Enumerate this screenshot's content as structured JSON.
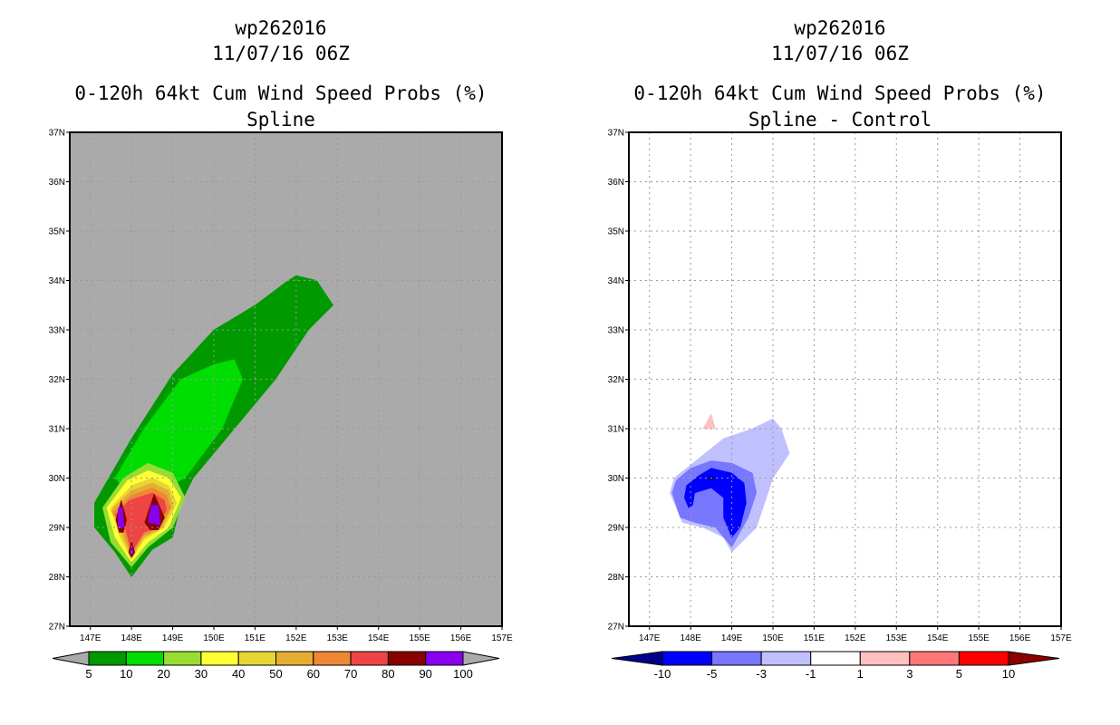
{
  "chart_data": [
    {
      "type": "heatmap",
      "storm": "wp262016",
      "datetime": "11/07/16 06Z",
      "title": "0-120h 64kt Cum Wind Speed Probs (%)",
      "subtitle": "Spline",
      "x_ticks": [
        "147E",
        "148E",
        "149E",
        "150E",
        "151E",
        "152E",
        "153E",
        "154E",
        "155E",
        "156E",
        "157E"
      ],
      "y_ticks": [
        "27N",
        "28N",
        "29N",
        "30N",
        "31N",
        "32N",
        "33N",
        "34N",
        "35N",
        "36N",
        "37N"
      ],
      "xlim": [
        146.5,
        157
      ],
      "ylim": [
        27,
        37
      ],
      "background": "#aaaaaa",
      "grid": true,
      "colorbar": {
        "labels": [
          "5",
          "10",
          "20",
          "30",
          "40",
          "50",
          "60",
          "70",
          "80",
          "90",
          "100"
        ],
        "colors": [
          "#009900",
          "#00dd00",
          "#99dd33",
          "#ffff33",
          "#e6d633",
          "#e6ad33",
          "#ee8833",
          "#ee4444",
          "#880000",
          "#8800ee"
        ],
        "under": "#aaaaaa",
        "over": "#aaaaaa"
      },
      "contours": [
        {
          "level": 5,
          "color": "#009900",
          "points": [
            [
              147.1,
              29.0
            ],
            [
              147.1,
              29.5
            ],
            [
              148.0,
              30.8
            ],
            [
              149.0,
              32.1
            ],
            [
              150.0,
              33.0
            ],
            [
              151.0,
              33.5
            ],
            [
              151.8,
              34.0
            ],
            [
              152.0,
              34.1
            ],
            [
              152.5,
              34.0
            ],
            [
              152.9,
              33.5
            ],
            [
              152.3,
              33.0
            ],
            [
              151.5,
              32.0
            ],
            [
              150.5,
              31.0
            ],
            [
              149.5,
              30.0
            ],
            [
              149.2,
              29.5
            ],
            [
              149.0,
              28.8
            ],
            [
              148.5,
              28.55
            ],
            [
              148.0,
              28.0
            ],
            [
              147.6,
              28.5
            ]
          ]
        },
        {
          "level": 10,
          "color": "#00dd00",
          "points": [
            [
              147.6,
              30.0
            ],
            [
              148.3,
              31.0
            ],
            [
              149.2,
              32.0
            ],
            [
              150.0,
              32.3
            ],
            [
              150.5,
              32.4
            ],
            [
              150.7,
              32.0
            ],
            [
              150.2,
              31.0
            ],
            [
              149.3,
              30.0
            ],
            [
              148.4,
              29.6
            ],
            [
              147.8,
              29.8
            ]
          ]
        },
        {
          "level": 20,
          "color": "#99dd33",
          "points": [
            [
              147.3,
              29.4
            ],
            [
              147.8,
              30.0
            ],
            [
              148.4,
              30.3
            ],
            [
              149.0,
              30.1
            ],
            [
              149.3,
              29.6
            ],
            [
              149.0,
              29.0
            ],
            [
              148.4,
              28.6
            ],
            [
              148.0,
              28.2
            ],
            [
              147.5,
              28.7
            ]
          ]
        },
        {
          "level": 30,
          "color": "#ffff33",
          "points": [
            [
              147.4,
              29.4
            ],
            [
              147.9,
              29.95
            ],
            [
              148.4,
              30.15
            ],
            [
              148.9,
              30.0
            ],
            [
              149.2,
              29.6
            ],
            [
              148.9,
              29.0
            ],
            [
              148.4,
              28.7
            ],
            [
              148.0,
              28.3
            ],
            [
              147.6,
              28.8
            ]
          ]
        },
        {
          "level": 40,
          "color": "#e6d633",
          "points": [
            [
              147.5,
              29.4
            ],
            [
              148.0,
              29.85
            ],
            [
              148.5,
              30.0
            ],
            [
              148.9,
              29.85
            ],
            [
              149.1,
              29.5
            ],
            [
              148.8,
              29.0
            ],
            [
              148.3,
              28.75
            ],
            [
              148.0,
              28.35
            ],
            [
              147.7,
              28.85
            ]
          ]
        },
        {
          "level": 50,
          "color": "#e6ad33",
          "points": [
            [
              147.5,
              29.35
            ],
            [
              148.0,
              29.75
            ],
            [
              148.5,
              29.9
            ],
            [
              148.9,
              29.75
            ],
            [
              149.0,
              29.45
            ],
            [
              148.75,
              29.0
            ],
            [
              148.3,
              28.8
            ],
            [
              148.0,
              28.4
            ],
            [
              147.75,
              28.9
            ]
          ]
        },
        {
          "level": 60,
          "color": "#ee8833",
          "points": [
            [
              147.55,
              29.3
            ],
            [
              148.0,
              29.65
            ],
            [
              148.5,
              29.8
            ],
            [
              148.85,
              29.65
            ],
            [
              148.95,
              29.4
            ],
            [
              148.7,
              29.0
            ],
            [
              148.3,
              28.85
            ],
            [
              148.0,
              28.45
            ],
            [
              147.8,
              28.95
            ]
          ]
        },
        {
          "level": 70,
          "color": "#ee4444",
          "points": [
            [
              147.6,
              29.25
            ],
            [
              147.95,
              29.55
            ],
            [
              148.5,
              29.7
            ],
            [
              148.8,
              29.55
            ],
            [
              148.85,
              29.35
            ],
            [
              148.6,
              29.0
            ],
            [
              148.3,
              28.9
            ],
            [
              148.0,
              28.5
            ],
            [
              147.85,
              29.0
            ]
          ]
        },
        {
          "level": 80,
          "color": "#880000",
          "points": [
            [
              147.62,
              29.15
            ],
            [
              147.75,
              29.55
            ],
            [
              147.88,
              29.15
            ],
            [
              147.8,
              28.9
            ],
            [
              147.7,
              28.9
            ]
          ]
        },
        {
          "level": 80,
          "color": "#880000",
          "points": [
            [
              148.32,
              29.1
            ],
            [
              148.55,
              29.68
            ],
            [
              148.8,
              29.2
            ],
            [
              148.65,
              28.95
            ],
            [
              148.45,
              28.95
            ]
          ]
        },
        {
          "level": 80,
          "color": "#880000",
          "points": [
            [
              147.93,
              28.5
            ],
            [
              148.0,
              28.72
            ],
            [
              148.08,
              28.5
            ],
            [
              148.0,
              28.38
            ]
          ]
        },
        {
          "level": 90,
          "color": "#8800ee",
          "points": [
            [
              147.67,
              29.0
            ],
            [
              147.68,
              29.4
            ],
            [
              147.78,
              29.4
            ],
            [
              147.82,
              29.0
            ]
          ]
        },
        {
          "level": 90,
          "color": "#8800ee",
          "points": [
            [
              148.4,
              29.1
            ],
            [
              148.48,
              29.45
            ],
            [
              148.65,
              29.45
            ],
            [
              148.7,
              29.05
            ]
          ]
        },
        {
          "level": 90,
          "color": "#8800ee",
          "points": [
            [
              147.97,
              28.5
            ],
            [
              148.0,
              28.62
            ],
            [
              148.04,
              28.5
            ],
            [
              148.0,
              28.44
            ]
          ]
        }
      ]
    },
    {
      "type": "heatmap",
      "storm": "wp262016",
      "datetime": "11/07/16 06Z",
      "title": "0-120h 64kt Cum Wind Speed Probs (%)",
      "subtitle": "Spline - Control",
      "x_ticks": [
        "147E",
        "148E",
        "149E",
        "150E",
        "151E",
        "152E",
        "153E",
        "154E",
        "155E",
        "156E",
        "157E"
      ],
      "y_ticks": [
        "27N",
        "28N",
        "29N",
        "30N",
        "31N",
        "32N",
        "33N",
        "34N",
        "35N",
        "36N",
        "37N"
      ],
      "xlim": [
        146.5,
        157
      ],
      "ylim": [
        27,
        37
      ],
      "background": "#ffffff",
      "grid": true,
      "colorbar": {
        "labels": [
          "-10",
          "-5",
          "-3",
          "-1",
          "1",
          "3",
          "5",
          "10"
        ],
        "colors": [
          "#0000ff",
          "#7777ff",
          "#c0c0ff",
          "#ffffff",
          "#ffc0c0",
          "#ff7777",
          "#ff0000"
        ],
        "under": "#00008b",
        "over": "#8b0000"
      },
      "contours": [
        {
          "level": -1,
          "color": "#c0c0ff",
          "points": [
            [
              147.5,
              29.7
            ],
            [
              147.6,
              30.0
            ],
            [
              148.2,
              30.4
            ],
            [
              148.8,
              30.8
            ],
            [
              149.5,
              31.0
            ],
            [
              150.0,
              31.2
            ],
            [
              150.2,
              31.0
            ],
            [
              150.4,
              30.5
            ],
            [
              150.0,
              30.0
            ],
            [
              149.8,
              29.5
            ],
            [
              149.6,
              29.0
            ],
            [
              149.0,
              28.5
            ],
            [
              148.8,
              28.8
            ],
            [
              148.3,
              29.0
            ],
            [
              147.8,
              29.1
            ]
          ]
        },
        {
          "level": -3,
          "color": "#7777ff",
          "points": [
            [
              147.55,
              29.7
            ],
            [
              147.65,
              29.95
            ],
            [
              148.0,
              30.2
            ],
            [
              148.5,
              30.35
            ],
            [
              149.0,
              30.3
            ],
            [
              149.5,
              30.1
            ],
            [
              149.6,
              29.7
            ],
            [
              149.4,
              29.2
            ],
            [
              149.0,
              28.6
            ],
            [
              148.6,
              29.0
            ],
            [
              148.1,
              29.1
            ],
            [
              147.75,
              29.2
            ]
          ]
        },
        {
          "level": -5,
          "color": "#0000ff",
          "points": [
            [
              147.85,
              29.6
            ],
            [
              147.9,
              29.85
            ],
            [
              148.2,
              30.05
            ],
            [
              148.5,
              30.2
            ],
            [
              149.0,
              30.1
            ],
            [
              149.3,
              29.9
            ],
            [
              149.35,
              29.5
            ],
            [
              149.2,
              29.0
            ],
            [
              149.0,
              28.8
            ],
            [
              148.8,
              29.2
            ],
            [
              148.8,
              29.6
            ],
            [
              148.5,
              29.8
            ],
            [
              148.1,
              29.7
            ],
            [
              148.05,
              29.45
            ],
            [
              147.95,
              29.4
            ]
          ]
        },
        {
          "level": -10,
          "color": "#00008b",
          "points": [
            [
              148.4,
              30.0
            ],
            [
              148.5,
              30.05
            ],
            [
              148.6,
              30.0
            ],
            [
              148.5,
              29.96
            ]
          ]
        },
        {
          "level": 1,
          "color": "#ffc0c0",
          "points": [
            [
              148.3,
              31.0
            ],
            [
              148.5,
              31.3
            ],
            [
              148.6,
              31.0
            ]
          ]
        }
      ]
    }
  ]
}
